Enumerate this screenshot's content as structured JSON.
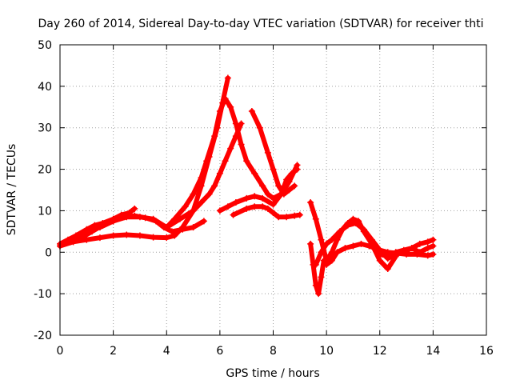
{
  "chart_data": {
    "type": "scatter",
    "title": "Day 260 of 2014, Sidereal Day-to-day VTEC variation (SDTVAR) for receiver thti",
    "xlabel": "GPS time / hours",
    "ylabel": "SDTVAR / TECUs",
    "xlim": [
      0,
      16
    ],
    "ylim": [
      -20,
      50
    ],
    "xticks": [
      "0",
      "2",
      "4",
      "6",
      "8",
      "10",
      "12",
      "14",
      "16"
    ],
    "yticks": [
      "-20",
      "-10",
      "0",
      "10",
      "20",
      "30",
      "40",
      "50"
    ],
    "grid": true,
    "legend": "none",
    "marker": "+",
    "color": "#ff0000",
    "series": [
      {
        "x": [
          0.0,
          0.3,
          0.6,
          1.0,
          1.3,
          1.6,
          2.0,
          2.3,
          2.6,
          2.8
        ],
        "y": [
          2.0,
          3.0,
          4.0,
          5.5,
          6.5,
          7.0,
          8.0,
          9.0,
          9.5,
          10.5
        ]
      },
      {
        "x": [
          0.0,
          0.4,
          0.8,
          1.2,
          1.6,
          2.0,
          2.4,
          2.8,
          3.2,
          3.6,
          3.9,
          4.2,
          4.6,
          5.0,
          5.4
        ],
        "y": [
          1.5,
          2.5,
          3.5,
          5.0,
          6.5,
          7.5,
          8.5,
          8.8,
          8.3,
          7.5,
          6.0,
          5.0,
          5.5,
          6.0,
          7.5
        ]
      },
      {
        "x": [
          0.0,
          0.5,
          1.0,
          1.5,
          2.0,
          2.5,
          3.0,
          3.5,
          4.0,
          4.3,
          4.6,
          5.0,
          5.3,
          5.6,
          5.9,
          6.1,
          6.3
        ],
        "y": [
          1.5,
          2.5,
          3.0,
          3.5,
          4.0,
          4.2,
          4.0,
          3.6,
          3.5,
          4.0,
          6.0,
          10.0,
          16.0,
          23.0,
          30.0,
          36.0,
          42.0
        ]
      },
      {
        "x": [
          1.5,
          2.0,
          2.5,
          3.0,
          3.5,
          4.0,
          4.3,
          4.7,
          5.0,
          5.3,
          5.5,
          5.8,
          6.0,
          6.2,
          6.4,
          6.6,
          6.8,
          7.0,
          7.3,
          7.6,
          7.8,
          8.0,
          8.3,
          8.6,
          8.9
        ],
        "y": [
          6.0,
          7.5,
          8.5,
          8.5,
          8.0,
          6.0,
          8.0,
          11.0,
          14.0,
          18.0,
          22.0,
          28.0,
          34.0,
          37.0,
          35.0,
          31.0,
          26.0,
          22.0,
          19.0,
          16.0,
          14.0,
          13.0,
          14.0,
          17.0,
          21.0
        ]
      },
      {
        "x": [
          4.0,
          4.5,
          5.0,
          5.3,
          5.6,
          5.8,
          6.0,
          6.2,
          6.4,
          6.6,
          6.8
        ],
        "y": [
          6.0,
          8.0,
          10.0,
          12.0,
          14.0,
          16.0,
          19.0,
          22.0,
          25.0,
          28.0,
          31.0
        ]
      },
      {
        "x": [
          6.0,
          6.3,
          6.6,
          7.0,
          7.3,
          7.6,
          8.0,
          8.3,
          8.5,
          8.7,
          8.9
        ],
        "y": [
          10.0,
          11.0,
          12.0,
          13.0,
          13.5,
          13.0,
          11.5,
          14.0,
          17.5,
          19.0,
          20.0
        ]
      },
      {
        "x": [
          6.5,
          7.0,
          7.3,
          7.6,
          7.8,
          8.0,
          8.2,
          8.5,
          8.8,
          9.0
        ],
        "y": [
          9.0,
          10.5,
          11.0,
          11.0,
          10.5,
          9.5,
          8.5,
          8.5,
          8.8,
          9.0
        ]
      },
      {
        "x": [
          7.2,
          7.5,
          7.8,
          8.0,
          8.2,
          8.4,
          8.6,
          8.8
        ],
        "y": [
          34.0,
          30.0,
          24.0,
          20.0,
          16.0,
          14.0,
          15.0,
          16.0
        ]
      },
      {
        "x": [
          9.4,
          9.6,
          9.8,
          10.0,
          10.2,
          10.4,
          10.6,
          10.8,
          11.0,
          11.2,
          11.4,
          11.7,
          12.0,
          12.3,
          12.6
        ],
        "y": [
          12.0,
          8.0,
          3.0,
          -2.0,
          0.0,
          3.0,
          5.5,
          7.0,
          8.0,
          7.5,
          5.0,
          2.0,
          -2.0,
          -4.0,
          -1.0
        ]
      },
      {
        "x": [
          9.6,
          9.8,
          10.0,
          10.2,
          10.5,
          10.8,
          11.1,
          11.4,
          11.7,
          12.0,
          12.3,
          12.6,
          12.9,
          13.2,
          13.5,
          13.8,
          14.0
        ],
        "y": [
          -3.0,
          0.0,
          2.0,
          3.0,
          5.0,
          6.5,
          7.0,
          5.5,
          3.0,
          0.5,
          -1.5,
          -0.5,
          0.0,
          1.0,
          2.0,
          2.5,
          3.0
        ]
      },
      {
        "x": [
          9.4,
          9.5,
          9.6,
          9.7,
          9.8,
          9.9,
          10.0,
          10.2,
          10.4,
          10.7,
          11.0,
          11.3,
          11.6,
          12.0,
          12.3,
          12.6,
          13.0,
          13.4,
          13.8,
          14.0
        ],
        "y": [
          2.0,
          -3.0,
          -8.0,
          -10.0,
          -6.0,
          -2.0,
          -3.0,
          -2.0,
          0.0,
          1.0,
          1.5,
          2.0,
          1.5,
          0.5,
          0.0,
          -0.2,
          -0.5,
          -0.5,
          -0.8,
          -0.5
        ]
      },
      {
        "x": [
          12.0,
          12.3,
          12.6,
          12.9,
          13.2,
          13.5,
          13.8,
          14.0
        ],
        "y": [
          -0.5,
          -1.0,
          0.0,
          0.5,
          1.0,
          0.0,
          1.0,
          1.5
        ]
      }
    ]
  }
}
